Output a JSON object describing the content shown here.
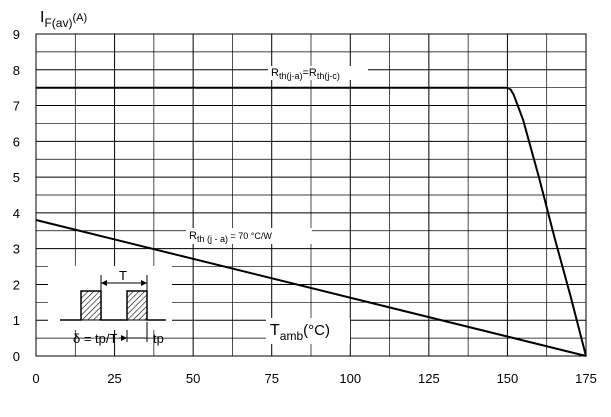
{
  "chart_data": {
    "type": "line",
    "ylabel_main": "I",
    "ylabel_sub": "F(av)",
    "ylabel_unit": "(A)",
    "xlabel_main": "T",
    "xlabel_sub": "amb",
    "xlabel_unit": "(°C)",
    "xlim": [
      0,
      175
    ],
    "ylim": [
      0,
      9
    ],
    "x_major_ticks": [
      0,
      25,
      50,
      75,
      100,
      125,
      150,
      175
    ],
    "y_major_ticks": [
      0,
      1,
      2,
      3,
      4,
      5,
      6,
      7,
      8,
      9
    ],
    "grid_x_step": 12.5,
    "grid_y_step": 0.5,
    "grid": true,
    "series": [
      {
        "label_main": "R",
        "label_sub": "th(j-a)",
        "label_mid": "=R",
        "label_sub2": "th(j-c)",
        "label_tail": "",
        "x": [
          0,
          150,
          151,
          152,
          155,
          160,
          165,
          170,
          175
        ],
        "y": [
          7.5,
          7.5,
          7.45,
          7.3,
          6.6,
          5.0,
          3.3,
          1.7,
          0
        ]
      },
      {
        "label_main": "R",
        "label_sub": "th (j - a)",
        "label_mid": " = 70 °C/W",
        "label_sub2": "",
        "label_tail": "",
        "x": [
          0,
          175
        ],
        "y": [
          3.8,
          0
        ]
      }
    ],
    "inset": {
      "period_label": "T",
      "duty_label": "δ = tp/T",
      "pulse_label": "tp"
    }
  }
}
